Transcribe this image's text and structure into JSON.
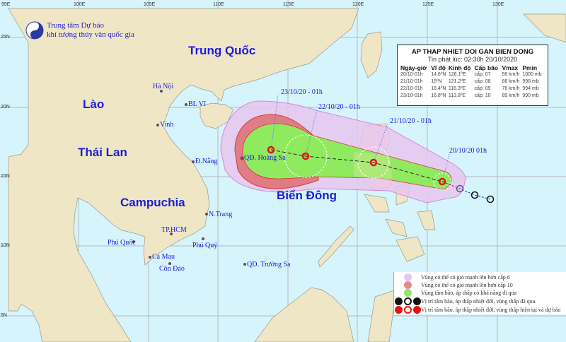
{
  "logo": {
    "line1": "Trung tâm Dự báo",
    "line2": "khí tượng thủy văn quốc gia",
    "emblem_text": "KTVN"
  },
  "axes": {
    "lon_ticks": [
      "95E",
      "100E",
      "105E",
      "110E",
      "115E",
      "120E",
      "125E",
      "130E"
    ],
    "lat_ticks": [
      "25N",
      "20N",
      "15N",
      "10N",
      "5N"
    ]
  },
  "countries": [
    "Trung Quốc",
    "Lào",
    "Thái Lan",
    "Campuchia",
    "Biển Đông"
  ],
  "cities": [
    "Hà Nội",
    "BL Vĩ",
    "Vinh",
    "Đ.Nẵng",
    "QĐ. Hoàng Sa",
    "N.Trang",
    "TP.HCM",
    "Phú Quốc",
    "Phú Quý",
    "Cà Mau",
    "Côn Đảo",
    "QĐ. Trường Sa"
  ],
  "track_labels": [
    "23/10/20 - 01h",
    "22/10/20 - 01h",
    "21/10/20 - 01h",
    "20/10/20   01h"
  ],
  "info": {
    "title": "AP THAP NHIET DOI GAN BIEN DONG",
    "issued": "Tin phát lúc: 02:30h 20/10/2020",
    "headers": [
      "Ngày-giờ",
      "Vĩ độ",
      "Kinh độ",
      "Cấp bão",
      "Vmax",
      "Pmin"
    ],
    "rows": [
      [
        "20/10-01h",
        "14.6ºN",
        "126.1ºE",
        "cấp: 07",
        "56 km/h",
        "1000 mb"
      ],
      [
        "21/10-01h",
        "15ºN",
        "121.2ºE",
        "cấp: 08",
        "66 km/h",
        "998 mb"
      ],
      [
        "22/10-01h",
        "16.4ºN",
        "116.3ºE",
        "cấp: 09",
        "76 km/h",
        "994 mb"
      ],
      [
        "23/10-01h",
        "16.8ºN",
        "113.8ºE",
        "cấp: 10",
        "89 km/h",
        "990 mb"
      ]
    ]
  },
  "legend": [
    {
      "text": "Vùng có thể có gió mạnh lên hơn cấp 6",
      "color": "#e6c6ee"
    },
    {
      "text": "Vùng có thể có gió mạnh lên hơn cấp 10",
      "color": "#e88a8a"
    },
    {
      "text": "Vùng tâm bão, áp thấp có khả năng đi qua",
      "color": "#8ee86a"
    },
    {
      "text": "Vị trí tâm bão, áp thấp nhiệt đới, vùng thấp đã qua",
      "color": "#111111"
    },
    {
      "text": "Vị trí tâm bão, áp thấp nhiệt đới, vùng thấp hiện tại và dự báo",
      "color": "#e81010"
    }
  ],
  "colors": {
    "land": "#efe6c6",
    "sea": "#d6f4fb",
    "zone6": "#e8c4ee",
    "zone10": "#e07c84",
    "cone": "#90ea60",
    "forecast": "#e81010"
  }
}
